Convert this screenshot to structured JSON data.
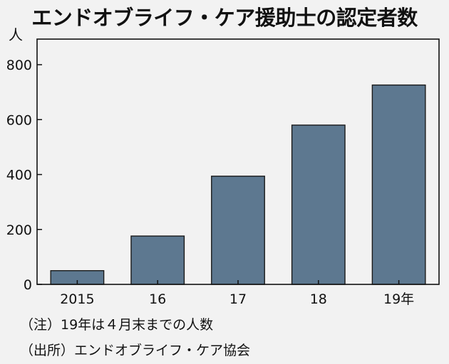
{
  "chart_data": {
    "type": "bar",
    "title": "エンドオブライフ・ケア援助士の認定者数",
    "ylabel": "人",
    "categories": [
      "2015",
      "16",
      "17",
      "18",
      "19年"
    ],
    "values": [
      50,
      176,
      394,
      580,
      726
    ],
    "ylim": [
      0,
      800
    ],
    "yticks": [
      "0",
      "200",
      "400",
      "600",
      "800"
    ],
    "grid": false,
    "bar_color": "#5d7890",
    "bar_edge_color": "#1a1a1a",
    "background_color": "#f2f2f2"
  },
  "notes": {
    "note1": "（注）19年は４月末までの人数",
    "note2": "（出所）エンドオブライフ・ケア協会"
  }
}
